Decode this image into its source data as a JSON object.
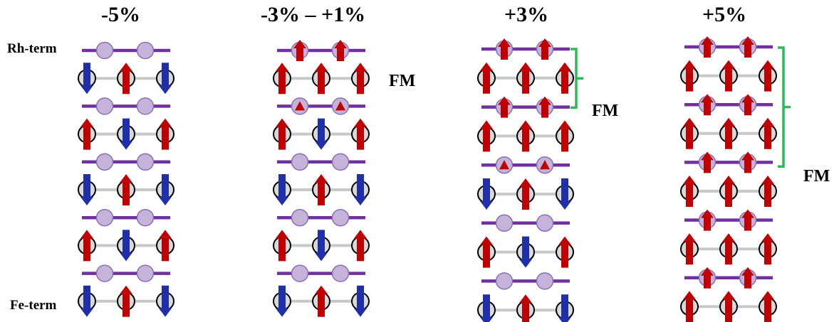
{
  "terminations": {
    "top": "Rh-term",
    "bottom": "Fe-term"
  },
  "fm_label": "FM",
  "colors": {
    "rh_line": "#7030a0",
    "rh_atom_fill": "#c5b3d9",
    "rh_atom_stroke": "#8a6fb5",
    "fe_line": "#c8c8c8",
    "fe_atom_fill": "#d9d9d9",
    "spin_up": "#c00000",
    "spin_down": "#1f2fa8",
    "bracket": "#2dbb5a"
  },
  "columns": [
    {
      "title": "-5%",
      "rh_moment": [
        "none",
        "none",
        "none",
        "none",
        "none"
      ],
      "fe_spins": [
        [
          "down",
          "up",
          "down"
        ],
        [
          "up",
          "down",
          "up"
        ],
        [
          "down",
          "up",
          "down"
        ],
        [
          "up",
          "down",
          "up"
        ],
        [
          "down",
          "up",
          "down"
        ]
      ],
      "fm_bracket": null
    },
    {
      "title": "-3% – +1%",
      "rh_moment": [
        "arrow",
        "small",
        "none",
        "none",
        "none"
      ],
      "fe_spins": [
        [
          "up",
          "up",
          "up"
        ],
        [
          "up",
          "down",
          "up"
        ],
        [
          "down",
          "up",
          "down"
        ],
        [
          "up",
          "down",
          "up"
        ],
        [
          "down",
          "up",
          "down"
        ]
      ],
      "fm_bracket": {
        "from_rh": 0,
        "to_rh": 1
      }
    },
    {
      "title": "+3%",
      "rh_moment": [
        "arrow",
        "arrow",
        "small",
        "none",
        "none"
      ],
      "fe_spins": [
        [
          "up",
          "up",
          "up"
        ],
        [
          "up",
          "up",
          "up"
        ],
        [
          "down",
          "up",
          "down"
        ],
        [
          "up",
          "down",
          "up"
        ],
        [
          "down",
          "up",
          "down"
        ]
      ],
      "fm_bracket": {
        "from_rh": 0,
        "to_rh": 2
      }
    },
    {
      "title": "+5%",
      "rh_moment": [
        "arrow",
        "arrow",
        "arrow",
        "arrow",
        "arrow"
      ],
      "fe_spins": [
        [
          "up",
          "up",
          "up"
        ],
        [
          "up",
          "up",
          "up"
        ],
        [
          "up",
          "up",
          "up"
        ],
        [
          "up",
          "up",
          "up"
        ],
        [
          "up",
          "up",
          "up"
        ]
      ],
      "fm_bracket": {
        "from_rh": 0,
        "to_fe": 4
      }
    }
  ]
}
